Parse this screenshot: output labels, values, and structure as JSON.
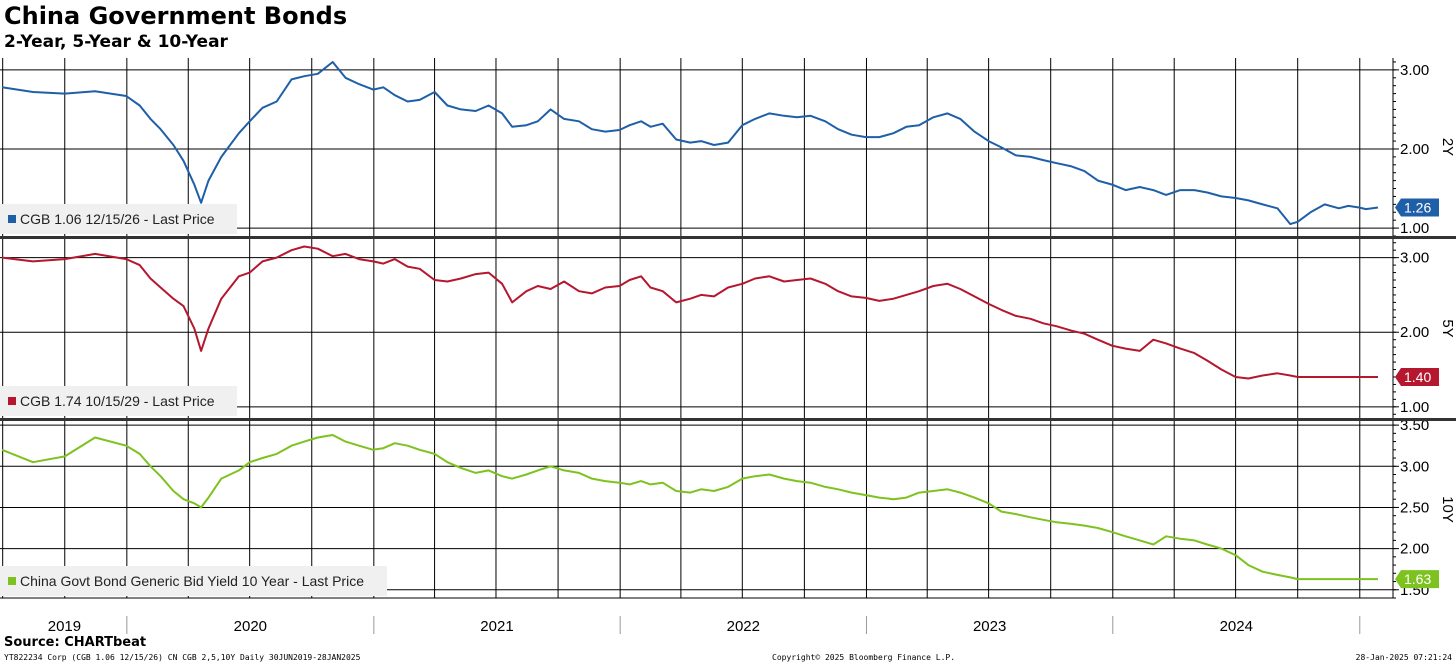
{
  "header": {
    "title": "China Government Bonds",
    "subtitle": "2-Year, 5-Year & 10-Year"
  },
  "footer": {
    "source": "Source: CHARTbeat",
    "left": "YT822234 Corp (CGB 1.06 12/15/26) CN CGB 2,5,10Y  Daily 30JUN2019-28JAN2025",
    "middle": "Copyright© 2025 Bloomberg Finance L.P.",
    "right": "28-Jan-2025 07:21:24"
  },
  "chart_data": {
    "type": "line",
    "x_type": "date",
    "x_range": [
      "2019-06-30",
      "2025-01-28"
    ],
    "x_tick_labels": [
      "2019",
      "2020",
      "2021",
      "2022",
      "2023",
      "2024"
    ],
    "grid": true,
    "panels": [
      {
        "axis_label": "2Y",
        "ylim": [
          0.9,
          3.15
        ],
        "yticks": [
          1.0,
          2.0,
          3.0
        ],
        "ytick_labels": [
          "1.00",
          "2.00",
          "3.00"
        ],
        "color": "#1f5fa8",
        "legend": "CGB 1.06 12/15/26 - Last Price",
        "last_value": "1.26",
        "series": {
          "name": "CGB 1.06 12/15/26 - Last Price",
          "x": [
            "2019-06-30",
            "2019-08-15",
            "2019-10-01",
            "2019-11-15",
            "2019-12-31",
            "2020-01-20",
            "2020-02-05",
            "2020-02-20",
            "2020-03-10",
            "2020-03-25",
            "2020-04-10",
            "2020-04-20",
            "2020-05-01",
            "2020-05-20",
            "2020-06-15",
            "2020-07-01",
            "2020-07-20",
            "2020-08-10",
            "2020-09-01",
            "2020-09-20",
            "2020-10-10",
            "2020-11-01",
            "2020-11-20",
            "2020-12-10",
            "2020-12-31",
            "2021-01-15",
            "2021-02-01",
            "2021-02-20",
            "2021-03-10",
            "2021-04-01",
            "2021-04-20",
            "2021-05-10",
            "2021-06-01",
            "2021-06-20",
            "2021-07-10",
            "2021-07-25",
            "2021-08-15",
            "2021-09-01",
            "2021-09-20",
            "2021-10-10",
            "2021-11-01",
            "2021-11-20",
            "2021-12-10",
            "2021-12-31",
            "2022-01-15",
            "2022-02-01",
            "2022-02-15",
            "2022-03-05",
            "2022-03-25",
            "2022-04-15",
            "2022-05-01",
            "2022-05-20",
            "2022-06-10",
            "2022-07-01",
            "2022-07-20",
            "2022-08-10",
            "2022-09-01",
            "2022-09-20",
            "2022-10-10",
            "2022-11-01",
            "2022-11-20",
            "2022-12-10",
            "2022-12-31",
            "2023-01-20",
            "2023-02-10",
            "2023-03-01",
            "2023-03-20",
            "2023-04-10",
            "2023-05-01",
            "2023-05-20",
            "2023-06-10",
            "2023-07-01",
            "2023-07-20",
            "2023-08-10",
            "2023-09-01",
            "2023-09-20",
            "2023-10-10",
            "2023-11-01",
            "2023-11-20",
            "2023-12-10",
            "2023-12-31",
            "2024-01-20",
            "2024-02-10",
            "2024-03-01",
            "2024-03-20",
            "2024-04-10",
            "2024-05-01",
            "2024-05-20",
            "2024-06-10",
            "2024-07-01",
            "2024-07-20",
            "2024-08-10",
            "2024-09-01",
            "2024-09-20",
            "2024-10-01",
            "2024-10-20",
            "2024-11-10",
            "2024-12-01",
            "2024-12-15",
            "2024-12-31",
            "2025-01-10",
            "2025-01-28"
          ],
          "y": [
            2.78,
            2.72,
            2.7,
            2.73,
            2.67,
            2.55,
            2.38,
            2.25,
            2.05,
            1.85,
            1.55,
            1.32,
            1.6,
            1.9,
            2.2,
            2.35,
            2.52,
            2.6,
            2.88,
            2.92,
            2.95,
            3.1,
            2.9,
            2.82,
            2.75,
            2.78,
            2.68,
            2.6,
            2.62,
            2.72,
            2.55,
            2.5,
            2.48,
            2.55,
            2.45,
            2.28,
            2.3,
            2.35,
            2.5,
            2.38,
            2.35,
            2.25,
            2.22,
            2.24,
            2.3,
            2.35,
            2.28,
            2.32,
            2.12,
            2.08,
            2.1,
            2.05,
            2.08,
            2.3,
            2.38,
            2.45,
            2.42,
            2.4,
            2.42,
            2.35,
            2.25,
            2.18,
            2.15,
            2.15,
            2.2,
            2.28,
            2.3,
            2.4,
            2.45,
            2.38,
            2.22,
            2.1,
            2.02,
            1.92,
            1.9,
            1.86,
            1.82,
            1.78,
            1.72,
            1.6,
            1.55,
            1.48,
            1.52,
            1.48,
            1.42,
            1.48,
            1.48,
            1.45,
            1.4,
            1.38,
            1.35,
            1.3,
            1.25,
            1.05,
            1.08,
            1.2,
            1.3,
            1.25,
            1.28,
            1.26,
            1.24,
            1.26
          ]
        }
      },
      {
        "axis_label": "5Y",
        "ylim": [
          0.85,
          3.25
        ],
        "yticks": [
          1.0,
          2.0,
          3.0
        ],
        "ytick_labels": [
          "1.00",
          "2.00",
          "3.00"
        ],
        "color": "#b5172f",
        "legend": "CGB 1.74 10/15/29 - Last Price",
        "last_value": "1.40",
        "series": {
          "name": "CGB 1.74 10/15/29 - Last Price",
          "x": [
            "2019-06-30",
            "2019-08-15",
            "2019-10-01",
            "2019-11-15",
            "2019-12-31",
            "2020-01-20",
            "2020-02-05",
            "2020-02-20",
            "2020-03-10",
            "2020-03-25",
            "2020-04-10",
            "2020-04-20",
            "2020-05-01",
            "2020-05-20",
            "2020-06-15",
            "2020-07-01",
            "2020-07-20",
            "2020-08-10",
            "2020-09-01",
            "2020-09-20",
            "2020-10-10",
            "2020-11-01",
            "2020-11-20",
            "2020-12-10",
            "2020-12-31",
            "2021-01-15",
            "2021-02-01",
            "2021-02-20",
            "2021-03-10",
            "2021-04-01",
            "2021-04-20",
            "2021-05-10",
            "2021-06-01",
            "2021-06-20",
            "2021-07-10",
            "2021-07-25",
            "2021-08-15",
            "2021-09-01",
            "2021-09-20",
            "2021-10-10",
            "2021-11-01",
            "2021-11-20",
            "2021-12-10",
            "2021-12-31",
            "2022-01-15",
            "2022-02-01",
            "2022-02-15",
            "2022-03-05",
            "2022-03-25",
            "2022-04-15",
            "2022-05-01",
            "2022-05-20",
            "2022-06-10",
            "2022-07-01",
            "2022-07-20",
            "2022-08-10",
            "2022-09-01",
            "2022-09-20",
            "2022-10-10",
            "2022-11-01",
            "2022-11-20",
            "2022-12-10",
            "2022-12-31",
            "2023-01-20",
            "2023-02-10",
            "2023-03-01",
            "2023-03-20",
            "2023-04-10",
            "2023-05-01",
            "2023-05-20",
            "2023-06-10",
            "2023-07-01",
            "2023-07-20",
            "2023-08-10",
            "2023-09-01",
            "2023-09-20",
            "2023-10-10",
            "2023-11-01",
            "2023-11-20",
            "2023-12-10",
            "2023-12-31",
            "2024-01-20",
            "2024-02-10",
            "2024-03-01",
            "2024-03-20",
            "2024-04-10",
            "2024-05-01",
            "2024-05-20",
            "2024-06-10",
            "2024-07-01",
            "2024-07-20",
            "2024-08-10",
            "2024-09-01",
            "2024-09-20",
            "2024-10-01",
            "2024-10-20",
            "2024-11-10",
            "2024-12-01",
            "2024-12-15",
            "2024-12-31",
            "2025-01-10",
            "2025-01-28"
          ],
          "y": [
            3.0,
            2.95,
            2.98,
            3.05,
            2.98,
            2.9,
            2.72,
            2.6,
            2.45,
            2.35,
            2.05,
            1.75,
            2.05,
            2.45,
            2.75,
            2.8,
            2.95,
            3.0,
            3.1,
            3.15,
            3.12,
            3.02,
            3.05,
            2.98,
            2.95,
            2.92,
            2.98,
            2.88,
            2.85,
            2.7,
            2.68,
            2.72,
            2.78,
            2.8,
            2.65,
            2.4,
            2.55,
            2.62,
            2.58,
            2.68,
            2.55,
            2.52,
            2.6,
            2.62,
            2.7,
            2.75,
            2.6,
            2.55,
            2.4,
            2.45,
            2.5,
            2.48,
            2.6,
            2.65,
            2.72,
            2.75,
            2.68,
            2.7,
            2.72,
            2.65,
            2.55,
            2.48,
            2.46,
            2.42,
            2.45,
            2.5,
            2.55,
            2.62,
            2.65,
            2.58,
            2.48,
            2.38,
            2.3,
            2.22,
            2.18,
            2.12,
            2.08,
            2.02,
            1.98,
            1.9,
            1.82,
            1.78,
            1.75,
            1.9,
            1.85,
            1.78,
            1.72,
            1.62,
            1.5,
            1.4,
            1.38,
            1.42,
            1.45,
            1.42,
            1.4,
            1.4,
            1.4,
            1.4,
            1.4,
            1.4,
            1.4,
            1.4
          ]
        }
      },
      {
        "axis_label": "10Y",
        "ylim": [
          1.4,
          3.55
        ],
        "yticks": [
          1.5,
          2.0,
          2.5,
          3.0,
          3.5
        ],
        "ytick_labels": [
          "1.50",
          "2.00",
          "2.50",
          "3.00",
          "3.50"
        ],
        "color": "#7dc21e",
        "legend": "China Govt Bond Generic Bid Yield 10 Year - Last Price",
        "last_value": "1.63",
        "series": {
          "name": "China Govt Bond Generic Bid Yield 10 Year - Last Price",
          "x": [
            "2019-06-30",
            "2019-08-15",
            "2019-10-01",
            "2019-11-15",
            "2019-12-31",
            "2020-01-20",
            "2020-02-05",
            "2020-02-20",
            "2020-03-10",
            "2020-03-25",
            "2020-04-10",
            "2020-04-20",
            "2020-05-01",
            "2020-05-20",
            "2020-06-15",
            "2020-07-01",
            "2020-07-20",
            "2020-08-10",
            "2020-09-01",
            "2020-09-20",
            "2020-10-10",
            "2020-11-01",
            "2020-11-20",
            "2020-12-10",
            "2020-12-31",
            "2021-01-15",
            "2021-02-01",
            "2021-02-20",
            "2021-03-10",
            "2021-04-01",
            "2021-04-20",
            "2021-05-10",
            "2021-06-01",
            "2021-06-20",
            "2021-07-10",
            "2021-07-25",
            "2021-08-15",
            "2021-09-01",
            "2021-09-20",
            "2021-10-10",
            "2021-11-01",
            "2021-11-20",
            "2021-12-10",
            "2021-12-31",
            "2022-01-15",
            "2022-02-01",
            "2022-02-15",
            "2022-03-05",
            "2022-03-25",
            "2022-04-15",
            "2022-05-01",
            "2022-05-20",
            "2022-06-10",
            "2022-07-01",
            "2022-07-20",
            "2022-08-10",
            "2022-09-01",
            "2022-09-20",
            "2022-10-10",
            "2022-11-01",
            "2022-11-20",
            "2022-12-10",
            "2022-12-31",
            "2023-01-20",
            "2023-02-10",
            "2023-03-01",
            "2023-03-20",
            "2023-04-10",
            "2023-05-01",
            "2023-05-20",
            "2023-06-10",
            "2023-07-01",
            "2023-07-20",
            "2023-08-10",
            "2023-09-01",
            "2023-09-20",
            "2023-10-10",
            "2023-11-01",
            "2023-11-20",
            "2023-12-10",
            "2023-12-31",
            "2024-01-20",
            "2024-02-10",
            "2024-03-01",
            "2024-03-20",
            "2024-04-10",
            "2024-05-01",
            "2024-05-20",
            "2024-06-10",
            "2024-07-01",
            "2024-07-20",
            "2024-08-10",
            "2024-09-01",
            "2024-09-20",
            "2024-10-01",
            "2024-10-20",
            "2024-11-10",
            "2024-12-01",
            "2024-12-15",
            "2024-12-31",
            "2025-01-10",
            "2025-01-28"
          ],
          "y": [
            3.2,
            3.05,
            3.12,
            3.35,
            3.25,
            3.15,
            3.0,
            2.88,
            2.7,
            2.6,
            2.55,
            2.5,
            2.62,
            2.85,
            2.95,
            3.05,
            3.1,
            3.15,
            3.25,
            3.3,
            3.35,
            3.38,
            3.3,
            3.25,
            3.2,
            3.22,
            3.28,
            3.25,
            3.2,
            3.15,
            3.05,
            2.98,
            2.92,
            2.95,
            2.88,
            2.85,
            2.9,
            2.95,
            3.0,
            2.95,
            2.92,
            2.85,
            2.82,
            2.8,
            2.78,
            2.82,
            2.78,
            2.8,
            2.7,
            2.68,
            2.72,
            2.7,
            2.75,
            2.85,
            2.88,
            2.9,
            2.85,
            2.82,
            2.8,
            2.75,
            2.72,
            2.68,
            2.65,
            2.62,
            2.6,
            2.62,
            2.68,
            2.7,
            2.72,
            2.68,
            2.62,
            2.55,
            2.45,
            2.42,
            2.38,
            2.35,
            2.32,
            2.3,
            2.28,
            2.25,
            2.2,
            2.15,
            2.1,
            2.05,
            2.15,
            2.12,
            2.1,
            2.05,
            2.0,
            1.92,
            1.8,
            1.72,
            1.68,
            1.65,
            1.63,
            1.63,
            1.63,
            1.63,
            1.63,
            1.63,
            1.63,
            1.63
          ]
        }
      }
    ]
  }
}
